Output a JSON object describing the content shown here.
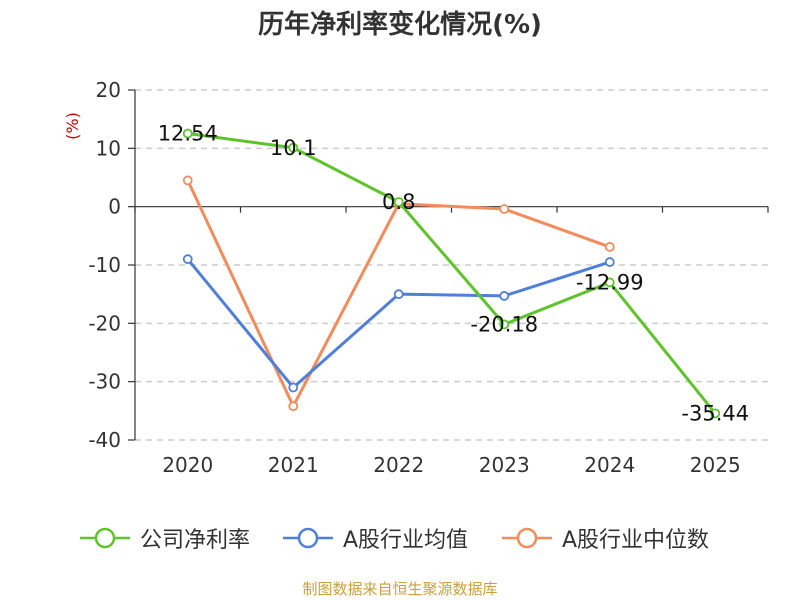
{
  "chart_data": {
    "type": "line",
    "title": "历年净利率变化情况(%)",
    "ylabel": "(%)",
    "categories": [
      "2020",
      "2021",
      "2022",
      "2023",
      "2024",
      "2025"
    ],
    "ylim": [
      -40,
      20
    ],
    "yticks": [
      20,
      10,
      0,
      -10,
      -20,
      -30,
      -40
    ],
    "grid": true,
    "legend_position": "bottom",
    "series": [
      {
        "name": "公司净利率",
        "color": "#5fc32b",
        "values": [
          12.54,
          10.1,
          0.8,
          -20.18,
          -12.99,
          -35.44
        ],
        "labels": [
          "12.54",
          "10.1",
          "0.8",
          "-20.18",
          "-12.99",
          "-35.44"
        ]
      },
      {
        "name": "A股行业均值",
        "color": "#4f7fd9",
        "values": [
          -9,
          -31,
          -15,
          -15.3,
          -9.5,
          null
        ]
      },
      {
        "name": "A股行业中位数",
        "color": "#f28c5a",
        "values": [
          4.5,
          -34.2,
          0.5,
          -0.4,
          -6.9,
          null
        ]
      }
    ]
  },
  "legend": {
    "items": [
      {
        "label": "公司净利率",
        "color": "#5fc32b"
      },
      {
        "label": "A股行业均值",
        "color": "#4f7fd9"
      },
      {
        "label": "A股行业中位数",
        "color": "#f28c5a"
      }
    ]
  },
  "source": "制图数据来自恒生聚源数据库"
}
